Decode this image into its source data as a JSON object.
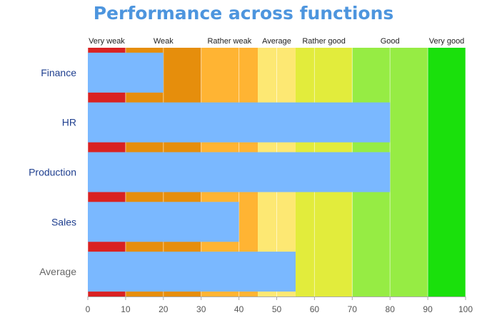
{
  "chart_data": {
    "type": "bar",
    "orientation": "horizontal",
    "title": "Performance across functions",
    "xlim": [
      0,
      100
    ],
    "x_ticks": [
      "0",
      "10",
      "20",
      "30",
      "40",
      "50",
      "60",
      "70",
      "80",
      "90",
      "100"
    ],
    "categories": [
      "Finance",
      "HR",
      "Production",
      "Sales",
      "Average"
    ],
    "values": [
      20,
      80,
      80,
      40,
      55
    ],
    "bar_color": "#7ab8ff",
    "category_label_color": "#1f3f8f",
    "average_label_color": "#666666",
    "bands": [
      {
        "label": "Very weak",
        "from": 0,
        "to": 10,
        "color": "#d92222"
      },
      {
        "label": "Weak",
        "from": 10,
        "to": 30,
        "color": "#e68e0c"
      },
      {
        "label": "Rather weak",
        "from": 30,
        "to": 45,
        "color": "#ffb433"
      },
      {
        "label": "Average",
        "from": 45,
        "to": 55,
        "color": "#fde873"
      },
      {
        "label": "Rather good",
        "from": 55,
        "to": 70,
        "color": "#e2ec3c"
      },
      {
        "label": "Good",
        "from": 70,
        "to": 90,
        "color": "#96ec44"
      },
      {
        "label": "Very good",
        "from": 90,
        "to": 100,
        "color": "#1ae00c"
      }
    ],
    "grid": true
  }
}
